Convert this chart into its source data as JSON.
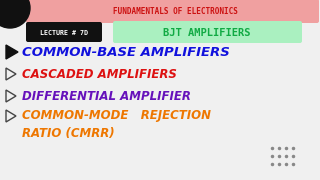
{
  "bg_color": "#f0f0f0",
  "top_bar_color": "#f0a0a0",
  "top_text": "FUNDAMENTALS OF ELECTRONICS",
  "top_text_color": "#cc1111",
  "lecture_box_color": "#111111",
  "lecture_text": "LECTURE # 7D",
  "lecture_text_color": "#ffffff",
  "bjt_box_color": "#aaf0c0",
  "bjt_text": "BJT AMPLIFIERS",
  "bjt_text_color": "#11aa44",
  "lines": [
    {
      "text": "COMMON-BASE AMPLIFIERS",
      "color": "#1111dd",
      "bullet_filled": true,
      "bullet_color": "#111111"
    },
    {
      "text": "CASCADED AMPLIFIERS",
      "color": "#dd1111",
      "bullet_filled": false,
      "bullet_color": "#333333"
    },
    {
      "text": "DIFFERENTIAL AMPLIFIER",
      "color": "#6611bb",
      "bullet_filled": false,
      "bullet_color": "#333333"
    },
    {
      "text": "COMMON-MODE   REJECTION",
      "color": "#ee7700",
      "bullet_filled": false,
      "bullet_color": "#333333"
    },
    {
      "text": "RATIO (CMRR)",
      "color": "#ee7700",
      "bullet_filled": false,
      "bullet_color": null
    }
  ],
  "dots_color": "#888888"
}
